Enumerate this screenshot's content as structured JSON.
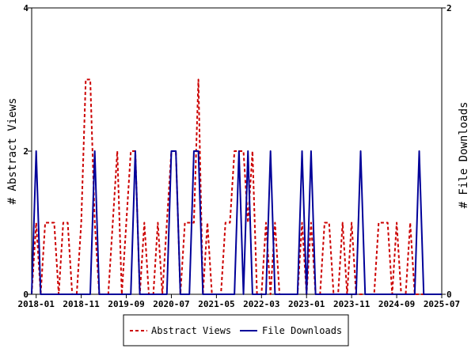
{
  "chart_data": {
    "type": "line",
    "title": "",
    "ylabel_left": "# Abstract Views",
    "ylabel_right": "# File Downloads",
    "x_tick_labels": [
      "2018-01",
      "2018-11",
      "2019-09",
      "2020-07",
      "2021-05",
      "2022-03",
      "2023-01",
      "2023-11",
      "2024-09",
      "2025-07"
    ],
    "x_start": "2017-12",
    "x_end": "2025-07",
    "y_left_ticks": [
      "0",
      "2",
      "4"
    ],
    "y_right_ticks": [
      "0",
      "2"
    ],
    "ylim_left": [
      0,
      4
    ],
    "ylim_right": [
      0,
      2
    ],
    "grid": false,
    "legend_position": "bottom-center",
    "series": [
      {
        "name": "Abstract Views",
        "axis": "left",
        "color": "#cc0000",
        "style": "dashed",
        "points": [
          [
            "2017-12",
            0
          ],
          [
            "2018-01",
            1
          ],
          [
            "2018-02",
            0
          ],
          [
            "2018-03",
            1
          ],
          [
            "2018-04",
            1
          ],
          [
            "2018-05",
            1
          ],
          [
            "2018-06",
            0
          ],
          [
            "2018-07",
            1
          ],
          [
            "2018-08",
            1
          ],
          [
            "2018-09",
            0
          ],
          [
            "2018-10",
            0
          ],
          [
            "2018-11",
            1
          ],
          [
            "2018-12",
            3
          ],
          [
            "2019-01",
            3
          ],
          [
            "2019-02",
            1
          ],
          [
            "2019-03",
            0
          ],
          [
            "2019-04",
            0
          ],
          [
            "2019-05",
            0
          ],
          [
            "2019-06",
            1
          ],
          [
            "2019-07",
            2
          ],
          [
            "2019-08",
            0
          ],
          [
            "2019-09",
            1
          ],
          [
            "2019-10",
            2
          ],
          [
            "2019-11",
            2
          ],
          [
            "2019-12",
            0
          ],
          [
            "2020-01",
            1
          ],
          [
            "2020-02",
            0
          ],
          [
            "2020-03",
            0
          ],
          [
            "2020-04",
            1
          ],
          [
            "2020-05",
            0
          ],
          [
            "2020-06",
            1
          ],
          [
            "2020-07",
            2
          ],
          [
            "2020-08",
            2
          ],
          [
            "2020-09",
            0
          ],
          [
            "2020-10",
            1
          ],
          [
            "2020-11",
            1
          ],
          [
            "2020-12",
            1
          ],
          [
            "2021-01",
            3
          ],
          [
            "2021-02",
            0
          ],
          [
            "2021-03",
            1
          ],
          [
            "2021-04",
            0
          ],
          [
            "2021-05",
            0
          ],
          [
            "2021-06",
            0
          ],
          [
            "2021-07",
            1
          ],
          [
            "2021-08",
            1
          ],
          [
            "2021-09",
            2
          ],
          [
            "2021-10",
            2
          ],
          [
            "2021-11",
            2
          ],
          [
            "2021-12",
            1
          ],
          [
            "2022-01",
            2
          ],
          [
            "2022-02",
            0
          ],
          [
            "2022-03",
            0
          ],
          [
            "2022-04",
            1
          ],
          [
            "2022-05",
            0
          ],
          [
            "2022-06",
            1
          ],
          [
            "2022-07",
            0
          ],
          [
            "2022-08",
            0
          ],
          [
            "2022-09",
            0
          ],
          [
            "2022-10",
            0
          ],
          [
            "2022-11",
            0
          ],
          [
            "2022-12",
            1
          ],
          [
            "2023-01",
            0
          ],
          [
            "2023-02",
            1
          ],
          [
            "2023-03",
            0
          ],
          [
            "2023-04",
            0
          ],
          [
            "2023-05",
            1
          ],
          [
            "2023-06",
            1
          ],
          [
            "2023-07",
            0
          ],
          [
            "2023-08",
            0
          ],
          [
            "2023-09",
            1
          ],
          [
            "2023-10",
            0
          ],
          [
            "2023-11",
            1
          ],
          [
            "2023-12",
            0
          ],
          [
            "2024-01",
            0
          ],
          [
            "2024-02",
            0
          ],
          [
            "2024-03",
            0
          ],
          [
            "2024-04",
            0
          ],
          [
            "2024-05",
            1
          ],
          [
            "2024-06",
            1
          ],
          [
            "2024-07",
            1
          ],
          [
            "2024-08",
            0
          ],
          [
            "2024-09",
            1
          ],
          [
            "2024-10",
            0
          ],
          [
            "2024-11",
            0
          ],
          [
            "2024-12",
            1
          ],
          [
            "2025-01",
            0
          ],
          [
            "2025-02",
            0
          ],
          [
            "2025-03",
            0
          ],
          [
            "2025-04",
            0
          ],
          [
            "2025-05",
            0
          ],
          [
            "2025-06",
            0
          ],
          [
            "2025-07",
            0
          ]
        ]
      },
      {
        "name": "File Downloads",
        "axis": "right",
        "color": "#000099",
        "style": "solid",
        "points": [
          [
            "2017-12",
            0
          ],
          [
            "2018-01",
            1
          ],
          [
            "2018-02",
            0
          ],
          [
            "2018-03",
            0
          ],
          [
            "2018-04",
            0
          ],
          [
            "2018-05",
            0
          ],
          [
            "2018-06",
            0
          ],
          [
            "2018-07",
            0
          ],
          [
            "2018-08",
            0
          ],
          [
            "2018-09",
            0
          ],
          [
            "2018-10",
            0
          ],
          [
            "2018-11",
            0
          ],
          [
            "2018-12",
            0
          ],
          [
            "2019-01",
            0
          ],
          [
            "2019-02",
            1
          ],
          [
            "2019-03",
            0
          ],
          [
            "2019-04",
            0
          ],
          [
            "2019-05",
            0
          ],
          [
            "2019-06",
            0
          ],
          [
            "2019-07",
            0
          ],
          [
            "2019-08",
            0
          ],
          [
            "2019-09",
            0
          ],
          [
            "2019-10",
            0
          ],
          [
            "2019-11",
            1
          ],
          [
            "2019-12",
            0
          ],
          [
            "2020-01",
            0
          ],
          [
            "2020-02",
            0
          ],
          [
            "2020-03",
            0
          ],
          [
            "2020-04",
            0
          ],
          [
            "2020-05",
            0
          ],
          [
            "2020-06",
            0
          ],
          [
            "2020-07",
            1
          ],
          [
            "2020-08",
            1
          ],
          [
            "2020-09",
            0
          ],
          [
            "2020-10",
            0
          ],
          [
            "2020-11",
            0
          ],
          [
            "2020-12",
            1
          ],
          [
            "2021-01",
            1
          ],
          [
            "2021-02",
            0
          ],
          [
            "2021-03",
            0
          ],
          [
            "2021-04",
            0
          ],
          [
            "2021-05",
            0
          ],
          [
            "2021-06",
            0
          ],
          [
            "2021-07",
            0
          ],
          [
            "2021-08",
            0
          ],
          [
            "2021-09",
            0
          ],
          [
            "2021-10",
            1
          ],
          [
            "2021-11",
            0
          ],
          [
            "2021-12",
            1
          ],
          [
            "2022-01",
            0
          ],
          [
            "2022-02",
            0
          ],
          [
            "2022-03",
            0
          ],
          [
            "2022-04",
            0
          ],
          [
            "2022-05",
            1
          ],
          [
            "2022-06",
            0
          ],
          [
            "2022-07",
            0
          ],
          [
            "2022-08",
            0
          ],
          [
            "2022-09",
            0
          ],
          [
            "2022-10",
            0
          ],
          [
            "2022-11",
            0
          ],
          [
            "2022-12",
            1
          ],
          [
            "2023-01",
            0
          ],
          [
            "2023-02",
            1
          ],
          [
            "2023-03",
            0
          ],
          [
            "2023-04",
            0
          ],
          [
            "2023-05",
            0
          ],
          [
            "2023-06",
            0
          ],
          [
            "2023-07",
            0
          ],
          [
            "2023-08",
            0
          ],
          [
            "2023-09",
            0
          ],
          [
            "2023-10",
            0
          ],
          [
            "2023-11",
            0
          ],
          [
            "2023-12",
            0
          ],
          [
            "2024-01",
            1
          ],
          [
            "2024-02",
            0
          ],
          [
            "2024-03",
            0
          ],
          [
            "2024-04",
            0
          ],
          [
            "2024-05",
            0
          ],
          [
            "2024-06",
            0
          ],
          [
            "2024-07",
            0
          ],
          [
            "2024-08",
            0
          ],
          [
            "2024-09",
            0
          ],
          [
            "2024-10",
            0
          ],
          [
            "2024-11",
            0
          ],
          [
            "2024-12",
            0
          ],
          [
            "2025-01",
            0
          ],
          [
            "2025-02",
            1
          ],
          [
            "2025-03",
            0
          ],
          [
            "2025-04",
            0
          ],
          [
            "2025-05",
            0
          ],
          [
            "2025-06",
            0
          ],
          [
            "2025-07",
            0
          ]
        ]
      }
    ]
  }
}
